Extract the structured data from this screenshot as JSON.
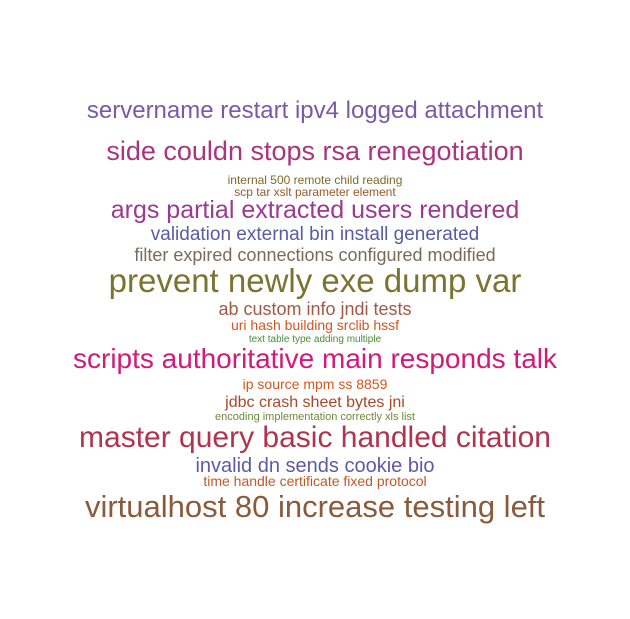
{
  "word_cloud": {
    "lines": [
      {
        "text": "servername restart ipv4 logged attachment",
        "color": "#7a5aa6"
      },
      {
        "text": "side couldn stops rsa renegotiation",
        "color": "#a8357e"
      },
      {
        "text": "internal 500 remote child reading",
        "color": "#7d6a2a"
      },
      {
        "text": "scp tar xslt parameter element",
        "color": "#9a5a2a"
      },
      {
        "text": "args partial extracted users rendered",
        "color": "#9b3a8e"
      },
      {
        "text": "validation external bin install generated",
        "color": "#5a5aa5"
      },
      {
        "text": "filter expired connections configured modified",
        "color": "#7a6a5a"
      },
      {
        "text": "prevent newly exe dump var",
        "color": "#7b7330"
      },
      {
        "text": "ab custom info jndi tests",
        "color": "#a25a45"
      },
      {
        "text": "uri hash building srclib hssf",
        "color": "#d2571f"
      },
      {
        "text": "text table type adding multiple",
        "color": "#4a8a3a"
      },
      {
        "text": "scripts authoritative main responds talk",
        "color": "#d11a7a"
      },
      {
        "text": "ip source mpm ss 8859",
        "color": "#d2571f"
      },
      {
        "text": "jdbc crash sheet bytes jni",
        "color": "#a8482a"
      },
      {
        "text": "encoding implementation correctly xls list",
        "color": "#6a8a3a"
      },
      {
        "text": "master query basic handled citation",
        "color": "#b0334f"
      },
      {
        "text": "invalid dn sends cookie bio",
        "color": "#5f5aa8"
      },
      {
        "text": "time handle certificate fixed protocol",
        "color": "#c0582a"
      },
      {
        "text": "virtualhost 80 increase testing left",
        "color": "#8a5a3a"
      }
    ]
  }
}
